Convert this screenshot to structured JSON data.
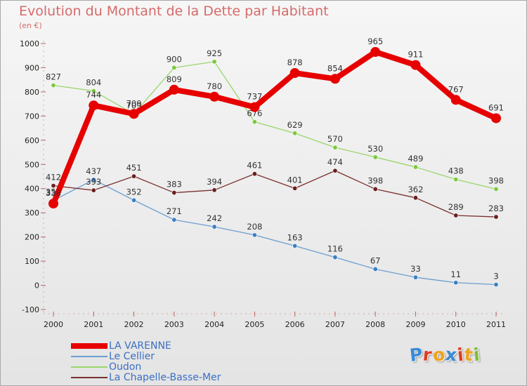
{
  "header": {
    "title": "Evolution du Montant de la Dette par Habitant",
    "subtitle": "(en €)"
  },
  "brand": {
    "letters": [
      "P",
      "r",
      "o",
      "x",
      "i",
      "t",
      "i"
    ],
    "colors": [
      "#3a8ad6",
      "#e03a1e",
      "#f2a218",
      "#3a8ad6",
      "#e03a1e",
      "#f2a218",
      "#7bbf2e"
    ]
  },
  "chart_data": {
    "type": "line",
    "title": "Evolution du Montant de la Dette par Habitant",
    "subtitle": "(en €)",
    "xlabel": "",
    "ylabel": "",
    "x": [
      "2000",
      "2001",
      "2002",
      "2003",
      "2004",
      "2005",
      "2006",
      "2007",
      "2008",
      "2009",
      "2010",
      "2011"
    ],
    "ylim": [
      -100,
      1000
    ],
    "yticks": [
      "-100",
      "0",
      "100",
      "200",
      "300",
      "400",
      "500",
      "600",
      "700",
      "800",
      "900",
      "1000"
    ],
    "grid": false,
    "legend_position": "bottom-left",
    "series": [
      {
        "name": "LA VARENNE",
        "color": "#e60000",
        "emphasis": true,
        "values": [
          338,
          744,
          709,
          809,
          780,
          737,
          878,
          854,
          965,
          911,
          767,
          691
        ],
        "labels": [
          "338",
          "744",
          "709",
          "809",
          "780",
          "737",
          "878",
          "854",
          "965",
          "911",
          "767",
          "691"
        ]
      },
      {
        "name": "Le Cellier",
        "color": "#6b9fd0",
        "point_color": "#3b7fc4",
        "values": [
          351,
          437,
          352,
          271,
          242,
          208,
          163,
          116,
          67,
          33,
          11,
          3
        ],
        "labels": [
          "351",
          "437",
          "352",
          "271",
          "242",
          "208",
          "163",
          "116",
          "67",
          "33",
          "11",
          "3"
        ]
      },
      {
        "name": "Oudon",
        "color": "#9ad66b",
        "point_color": "#7cc83c",
        "values": [
          827,
          804,
          709,
          900,
          925,
          676,
          629,
          570,
          530,
          489,
          438,
          398
        ],
        "labels": [
          "827",
          "804",
          "709",
          "900",
          "925",
          "676",
          "629",
          "570",
          "530",
          "489",
          "438",
          "398"
        ]
      },
      {
        "name": "La Chapelle-Basse-Mer",
        "color": "#7a2f2f",
        "point_color": "#6a1f1f",
        "values": [
          412,
          393,
          451,
          383,
          394,
          461,
          401,
          474,
          398,
          362,
          289,
          283
        ],
        "labels": [
          "412",
          "393",
          "451",
          "383",
          "394",
          "461",
          "401",
          "474",
          "398",
          "362",
          "289",
          "283"
        ]
      }
    ]
  }
}
